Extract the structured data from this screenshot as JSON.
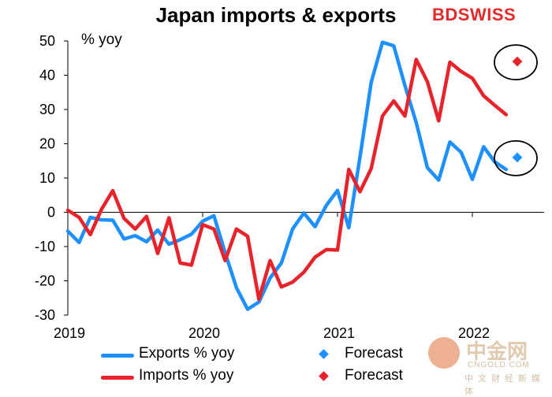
{
  "title": "Japan imports & exports",
  "brand": {
    "prefix": "BD",
    "name": "SWISS"
  },
  "unit_label": "% yoy",
  "colors": {
    "exports": "#1e90ff",
    "imports": "#e8232b",
    "circle": "#000000"
  },
  "legend": [
    {
      "label": "Exports % yoy",
      "color": "#1e90ff",
      "forecast_label": "Forecast"
    },
    {
      "label": "Imports % yoy",
      "color": "#e8232b",
      "forecast_label": "Forecast"
    }
  ],
  "watermark": {
    "main": "中金网",
    "sub": "CNGOLD.COM",
    "sub2": "中文财经新媒体"
  },
  "chart_data": {
    "type": "line",
    "title": "Japan imports & exports",
    "ylabel": "% yoy",
    "ylim": [
      -30,
      50
    ],
    "yticks": [
      -30,
      -20,
      -10,
      0,
      10,
      20,
      30,
      40,
      50
    ],
    "xlim": [
      "2019-01",
      "2022-05"
    ],
    "xticks": [
      "2019",
      "2020",
      "2021",
      "2022"
    ],
    "grid": false,
    "legend_position": "bottom",
    "series": [
      {
        "name": "Exports % yoy",
        "x": [
          "2019-01",
          "2019-02",
          "2019-03",
          "2019-04",
          "2019-05",
          "2019-06",
          "2019-07",
          "2019-08",
          "2019-09",
          "2019-10",
          "2019-11",
          "2019-12",
          "2020-01",
          "2020-02",
          "2020-03",
          "2020-04",
          "2020-05",
          "2020-06",
          "2020-07",
          "2020-08",
          "2020-09",
          "2020-10",
          "2020-11",
          "2020-12",
          "2021-01",
          "2021-02",
          "2021-03",
          "2021-04",
          "2021-05",
          "2021-06",
          "2021-07",
          "2021-08",
          "2021-09",
          "2021-10",
          "2021-11",
          "2021-12",
          "2022-01",
          "2022-02",
          "2022-03",
          "2022-04"
        ],
        "values": [
          -5.5,
          -8.8,
          -1.5,
          -2.2,
          -2.3,
          -7.8,
          -6.8,
          -8.6,
          -5.2,
          -9.3,
          -8.0,
          -6.4,
          -2.6,
          -1.0,
          -11.8,
          -22.0,
          -28.3,
          -26.2,
          -19.2,
          -14.8,
          -4.9,
          -0.2,
          -4.2,
          2.0,
          6.4,
          -4.5,
          16.1,
          38.0,
          49.6,
          48.6,
          37.0,
          26.2,
          13.0,
          9.4,
          20.5,
          17.5,
          9.6,
          19.1,
          14.7,
          12.5
        ]
      },
      {
        "name": "Imports % yoy",
        "x": [
          "2019-01",
          "2019-02",
          "2019-03",
          "2019-04",
          "2019-05",
          "2019-06",
          "2019-07",
          "2019-08",
          "2019-09",
          "2019-10",
          "2019-11",
          "2019-12",
          "2020-01",
          "2020-02",
          "2020-03",
          "2020-04",
          "2020-05",
          "2020-06",
          "2020-07",
          "2020-08",
          "2020-09",
          "2020-10",
          "2020-11",
          "2020-12",
          "2021-01",
          "2021-02",
          "2021-03",
          "2021-04",
          "2021-05",
          "2021-06",
          "2021-07",
          "2021-08",
          "2021-09",
          "2021-10",
          "2021-11",
          "2021-12",
          "2022-01",
          "2022-02",
          "2022-03",
          "2022-04"
        ],
        "values": [
          0.6,
          -1.5,
          -6.5,
          0.9,
          6.3,
          -1.8,
          -4.9,
          -1.2,
          -12.0,
          -1.6,
          -14.8,
          -15.4,
          -3.6,
          -4.9,
          -14.1,
          -4.9,
          -7.0,
          -25.4,
          -14.1,
          -21.8,
          -20.4,
          -17.5,
          -13.1,
          -10.9,
          -11.0,
          12.5,
          6.0,
          12.8,
          28.1,
          32.5,
          28.1,
          44.6,
          38.1,
          26.7,
          43.8,
          41.1,
          39.1,
          34.0,
          31.2,
          28.5
        ]
      }
    ],
    "forecasts": [
      {
        "name": "Forecast",
        "series": "Exports % yoy",
        "x": "2022-05",
        "value": 16.0
      },
      {
        "name": "Forecast",
        "series": "Imports % yoy",
        "x": "2022-05",
        "value": 44.0
      }
    ]
  }
}
